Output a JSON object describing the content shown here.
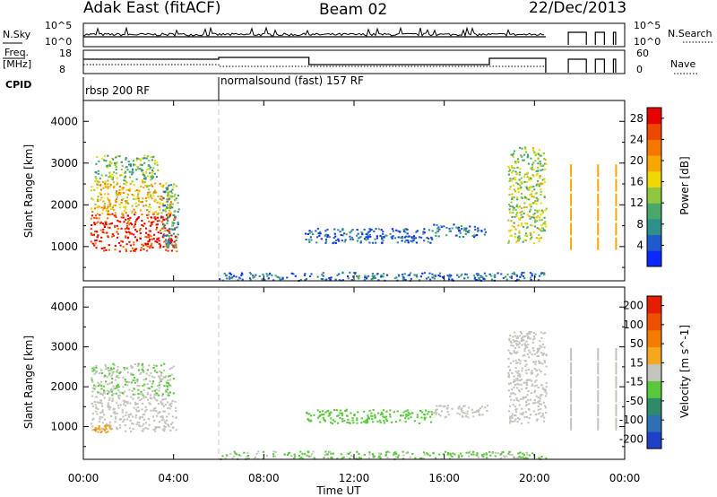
{
  "header": {
    "radar": "Adak East (fitACF)",
    "beam": "Beam 02",
    "date": "22/Dec/2013"
  },
  "summary": {
    "nsky_label": "N.Sky",
    "nsearch_label": "N.Search",
    "nsky_ticks": [
      "10^5",
      "10^0"
    ],
    "nsearch_ticks": [
      "10^5",
      "10^0"
    ],
    "freq_label_1": "Freq.",
    "freq_label_2": "[MHz]",
    "freq_ticks": [
      "18",
      "8"
    ],
    "nave_label": "Nave",
    "nave_ticks": [
      "60",
      "0"
    ],
    "cpid_label": "CPID",
    "cpid_segments": [
      {
        "start_h": 0,
        "end_h": 6,
        "label": "rbsp 200 RF"
      },
      {
        "start_h": 6,
        "end_h": 20.5,
        "label": "normalsound (fast) 157 RF"
      }
    ],
    "data_gaps_h": [
      [
        20.5,
        21.5
      ]
    ],
    "sparse_blocks_h": [
      [
        21.5,
        22.3
      ],
      [
        22.7,
        23.1
      ],
      [
        23.5,
        23.6
      ]
    ]
  },
  "chart_data": [
    {
      "type": "heatmap",
      "name": "Power",
      "ylabel": "Slant Range [km]",
      "xlabel": "Time UT",
      "xlim_h": [
        0,
        24
      ],
      "ylim_km": [
        180,
        4500
      ],
      "x_ticks": [
        "00:00",
        "04:00",
        "08:00",
        "12:00",
        "16:00",
        "20:00",
        "00:00"
      ],
      "y_ticks": [
        1000,
        2000,
        3000,
        4000
      ],
      "colorbar": {
        "label": "Power [dB]",
        "ticks": [
          "4",
          "8",
          "12",
          "16",
          "20",
          "24",
          "28"
        ],
        "range": [
          0,
          30
        ],
        "colors": [
          "#0a28ff",
          "#1f5acc",
          "#2f8f8a",
          "#48a86a",
          "#8fc840",
          "#f0d800",
          "#f7a800",
          "#f47800",
          "#ee4800",
          "#e60000"
        ]
      },
      "regions": [
        {
          "t": [
            0.3,
            4.1
          ],
          "r": [
            900,
            1800
          ],
          "level": 27
        },
        {
          "t": [
            0.3,
            4.0
          ],
          "r": [
            1800,
            2600
          ],
          "level": 18
        },
        {
          "t": [
            0.5,
            3.3
          ],
          "r": [
            2600,
            3200
          ],
          "level": 12
        },
        {
          "t": [
            3.5,
            4.2
          ],
          "r": [
            1000,
            2500
          ],
          "level": 9
        },
        {
          "t": [
            9.8,
            15.5
          ],
          "r": [
            1100,
            1450
          ],
          "level": 5
        },
        {
          "t": [
            15.5,
            18.0
          ],
          "r": [
            1250,
            1550
          ],
          "level": 6
        },
        {
          "t": [
            18.8,
            20.5
          ],
          "r": [
            1100,
            3400
          ],
          "level": 14
        },
        {
          "t": [
            6.0,
            20.5
          ],
          "r": [
            200,
            400
          ],
          "level": 6
        }
      ]
    },
    {
      "type": "heatmap",
      "name": "Velocity",
      "ylabel": "Slant Range [km]",
      "xlabel": "Time UT",
      "xlim_h": [
        0,
        24
      ],
      "ylim_km": [
        180,
        4500
      ],
      "x_ticks": [
        "00:00",
        "04:00",
        "08:00",
        "12:00",
        "16:00",
        "20:00",
        "00:00"
      ],
      "y_ticks": [
        1000,
        2000,
        3000,
        4000
      ],
      "colorbar": {
        "label": "Velocity [m s^-1]",
        "ticks": [
          "200",
          "100",
          "50",
          "15",
          "-15",
          "-50",
          "-100",
          "-200"
        ],
        "range": [
          -200,
          200
        ],
        "colors": [
          "#1e3fc8",
          "#2f6fb4",
          "#2f8a6a",
          "#5ac83c",
          "#c4c4bc",
          "#f4a820",
          "#f47c00",
          "#ee5000",
          "#e61e00"
        ]
      },
      "regions": [
        {
          "t": [
            0.3,
            4.1
          ],
          "r": [
            900,
            1800
          ],
          "level": 0
        },
        {
          "t": [
            0.3,
            4.0
          ],
          "r": [
            1800,
            2600
          ],
          "level": -20
        },
        {
          "t": [
            0.4,
            1.2
          ],
          "r": [
            850,
            1050
          ],
          "level": 60
        },
        {
          "t": [
            9.8,
            15.5
          ],
          "r": [
            1100,
            1450
          ],
          "level": -40
        },
        {
          "t": [
            15.5,
            18.0
          ],
          "r": [
            1250,
            1550
          ],
          "level": 0
        },
        {
          "t": [
            18.8,
            20.5
          ],
          "r": [
            1100,
            3400
          ],
          "level": 0
        },
        {
          "t": [
            6.0,
            20.5
          ],
          "r": [
            200,
            400
          ],
          "level": -30
        }
      ]
    }
  ]
}
